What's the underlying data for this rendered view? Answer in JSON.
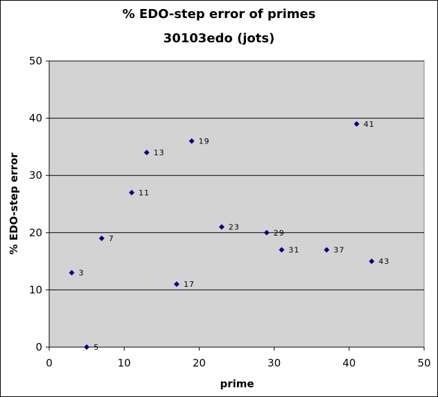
{
  "chart_data": {
    "type": "scatter",
    "title": "% EDO-step error of primes",
    "subtitle": "30103edo (jots)",
    "xlabel": "prime",
    "ylabel": "% EDO-step error",
    "xlim": [
      0,
      50
    ],
    "ylim": [
      0,
      50
    ],
    "x_ticks": [
      0,
      10,
      20,
      30,
      40,
      50
    ],
    "y_ticks": [
      0,
      10,
      20,
      30,
      40,
      50
    ],
    "grid": "horizontal",
    "legend": "none",
    "colors": {
      "plot_background": "#d3d3d3",
      "marker": "#000080",
      "gridline": "#000000"
    },
    "series": [
      {
        "points": [
          {
            "x": 3,
            "y": 13,
            "label": "3"
          },
          {
            "x": 5,
            "y": 0,
            "label": "5"
          },
          {
            "x": 7,
            "y": 19,
            "label": "7"
          },
          {
            "x": 11,
            "y": 27,
            "label": "11"
          },
          {
            "x": 13,
            "y": 34,
            "label": "13"
          },
          {
            "x": 17,
            "y": 11,
            "label": "17"
          },
          {
            "x": 19,
            "y": 36,
            "label": "19"
          },
          {
            "x": 23,
            "y": 21,
            "label": "23"
          },
          {
            "x": 29,
            "y": 20,
            "label": "29"
          },
          {
            "x": 31,
            "y": 17,
            "label": "31"
          },
          {
            "x": 37,
            "y": 17,
            "label": "37"
          },
          {
            "x": 41,
            "y": 39,
            "label": "41"
          },
          {
            "x": 43,
            "y": 15,
            "label": "43"
          }
        ]
      }
    ]
  }
}
